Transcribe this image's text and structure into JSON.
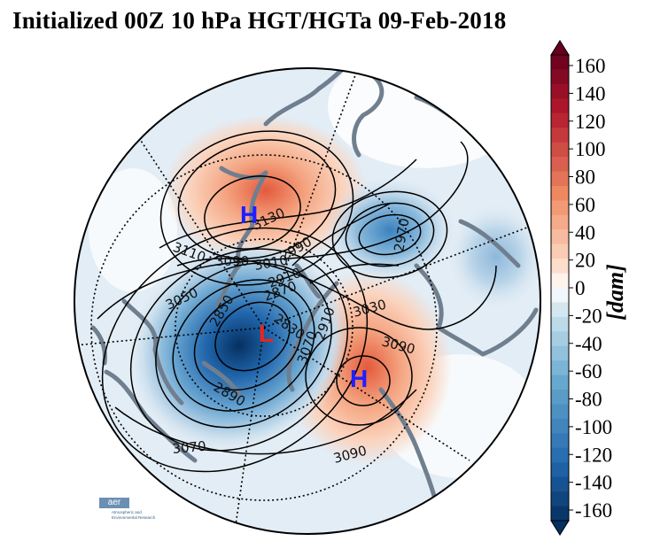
{
  "title": "Initialized 00Z 10 hPa HGT/HGTa 09-Feb-2018",
  "colorbar": {
    "unit": "[dam]",
    "ticks": [
      "160",
      "140",
      "120",
      "100",
      "80",
      "60",
      "40",
      "20",
      "0",
      "-20",
      "-40",
      "-60",
      "-80",
      "-100",
      "-120",
      "-140",
      "-160"
    ],
    "colors": {
      "max": "#67001f",
      "pos_high": "#b2182b",
      "pos_mid": "#ef8a62",
      "pos_low": "#fddbc7",
      "zero": "#ffffff",
      "neg_low": "#d1e5f0",
      "neg_mid": "#67a9cf",
      "neg_high": "#2166ac",
      "min": "#053061"
    }
  },
  "map": {
    "projection": "north-polar-stereographic",
    "contour_labels": [
      "3130",
      "3110",
      "3090",
      "3010",
      "3070",
      "2990",
      "2910",
      "3050",
      "2970",
      "2870",
      "2830",
      "2850",
      "2910",
      "3030",
      "3090",
      "2890",
      "3070",
      "3090"
    ],
    "centers": [
      {
        "label": "H",
        "color": "#1f1fff"
      },
      {
        "label": "L",
        "color": "#e8261c"
      },
      {
        "label": "H",
        "color": "#1f1fff"
      }
    ],
    "land_outline_color": "#6f7f8f"
  },
  "logo": {
    "mark": "aer",
    "text": "Atmospheric and\nEnvironmental Research"
  }
}
